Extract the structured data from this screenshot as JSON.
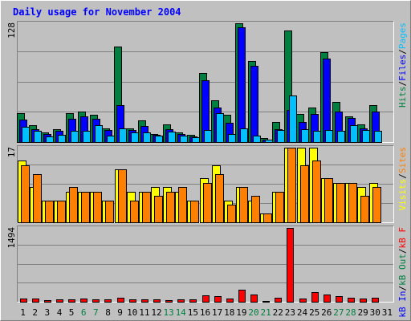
{
  "chart_data": [
    {
      "type": "bar",
      "title": "Daily usage for November 2004",
      "ymax_label": "128",
      "ylim": [
        0,
        128
      ],
      "grid": true,
      "categories": [
        "1",
        "2",
        "3",
        "4",
        "5",
        "6",
        "7",
        "8",
        "9",
        "10",
        "11",
        "12",
        "13",
        "14",
        "15",
        "16",
        "17",
        "18",
        "19",
        "20",
        "21",
        "22",
        "23",
        "24",
        "25",
        "26",
        "27",
        "28",
        "29",
        "30",
        "31"
      ],
      "legend_parts": [
        {
          "text": "Hits",
          "color": "#008040"
        },
        {
          "text": "/",
          "color": "#000000"
        },
        {
          "text": "Files",
          "color": "#0000ff"
        },
        {
          "text": "/",
          "color": "#000000"
        },
        {
          "text": "Pages",
          "color": "#00c0ff"
        }
      ],
      "series": [
        {
          "name": "Hits",
          "color": "#008040",
          "values": [
            31,
            18,
            10,
            14,
            31,
            33,
            29,
            15,
            103,
            15,
            23,
            9,
            19,
            10,
            8,
            74,
            45,
            29,
            128,
            87,
            4,
            22,
            120,
            30,
            37,
            97,
            43,
            28,
            19,
            40,
            0
          ]
        },
        {
          "name": "Files",
          "color": "#0000ff",
          "values": [
            24,
            14,
            9,
            12,
            25,
            28,
            25,
            13,
            40,
            13,
            17,
            8,
            14,
            9,
            6,
            67,
            37,
            21,
            124,
            82,
            3,
            14,
            35,
            22,
            30,
            90,
            33,
            26,
            15,
            33,
            0
          ]
        },
        {
          "name": "Pages",
          "color": "#00c0ff",
          "values": [
            16,
            12,
            6,
            8,
            12,
            12,
            18,
            7,
            15,
            10,
            10,
            7,
            11,
            7,
            5,
            13,
            31,
            9,
            15,
            7,
            3,
            13,
            50,
            14,
            12,
            13,
            12,
            18,
            13,
            12,
            0
          ]
        }
      ]
    },
    {
      "type": "bar",
      "ymax_label": "17",
      "ylim": [
        0,
        17
      ],
      "grid": true,
      "legend_parts": [
        {
          "text": "Visits",
          "color": "#ffff00"
        },
        {
          "text": "/",
          "color": "#000000"
        },
        {
          "text": "Sites",
          "color": "#ff8000"
        }
      ],
      "series": [
        {
          "name": "Visits",
          "color": "#ffff00",
          "values": [
            14,
            8,
            5,
            5,
            7,
            7,
            7,
            5,
            12,
            7,
            7,
            8,
            8,
            7,
            5,
            10,
            13,
            5,
            8,
            5,
            2,
            7,
            17,
            17,
            17,
            10,
            9,
            9,
            8,
            9,
            0
          ]
        },
        {
          "name": "Sites",
          "color": "#ff8000",
          "values": [
            13,
            11,
            5,
            5,
            8,
            7,
            7,
            5,
            12,
            5,
            7,
            6,
            7,
            8,
            5,
            9,
            11,
            4,
            8,
            6,
            2,
            7,
            17,
            13,
            14,
            10,
            9,
            9,
            6,
            8,
            0
          ]
        }
      ]
    },
    {
      "type": "bar",
      "ymax_label": "1494",
      "ylim": [
        0,
        1494
      ],
      "grid": true,
      "legend_parts": [
        {
          "text": "kB In",
          "color": "#0000ff"
        },
        {
          "text": "/",
          "color": "#000000"
        },
        {
          "text": "kB Out",
          "color": "#008040"
        },
        {
          "text": "/",
          "color": "#000000"
        },
        {
          "text": "kB F",
          "color": "#ff0000"
        }
      ],
      "series": [
        {
          "name": "kB F",
          "color": "#ff0000",
          "values": [
            60,
            58,
            38,
            55,
            55,
            58,
            48,
            55,
            75,
            42,
            42,
            45,
            40,
            48,
            55,
            125,
            110,
            60,
            240,
            140,
            20,
            80,
            1494,
            70,
            200,
            140,
            120,
            85,
            60,
            80,
            0
          ]
        }
      ]
    }
  ],
  "x_label_colors": {
    "weekday": "#000000",
    "weekend": "#008040"
  },
  "weekend_days": [
    "6",
    "7",
    "13",
    "14",
    "20",
    "21",
    "27",
    "28"
  ]
}
